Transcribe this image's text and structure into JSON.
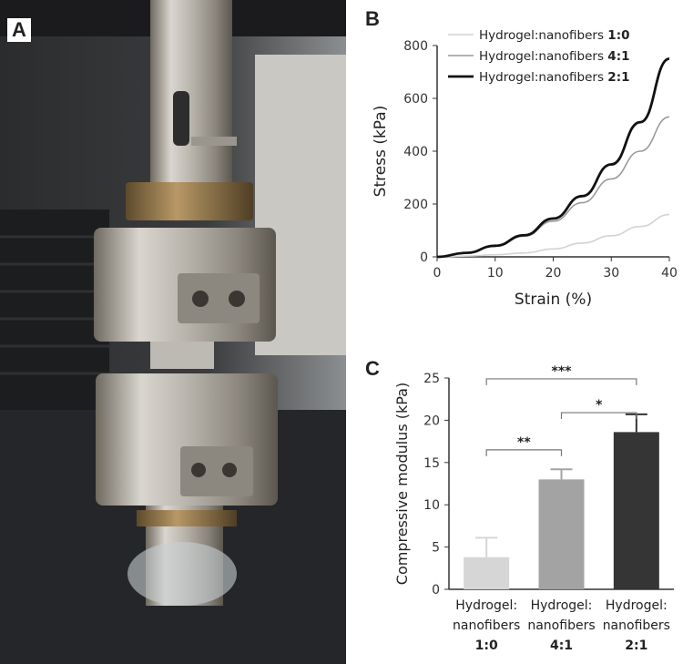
{
  "panels": {
    "a": "A",
    "b": "B",
    "c": "C"
  },
  "chart_data": [
    {
      "type": "line",
      "xlabel": "Strain (%)",
      "ylabel": "Stress (kPa)",
      "xlim": [
        0,
        40
      ],
      "ylim": [
        0,
        800
      ],
      "xticks": [
        0,
        10,
        20,
        30,
        40
      ],
      "yticks": [
        0,
        200,
        400,
        600,
        800
      ],
      "legend_position": "top-right",
      "series": [
        {
          "name": "Hydrogel:nanofibers 1:0",
          "color": "#d3d3d3",
          "x": [
            0,
            5,
            10,
            15,
            20,
            25,
            30,
            35,
            40
          ],
          "y": [
            0,
            3,
            8,
            15,
            30,
            52,
            80,
            115,
            160
          ]
        },
        {
          "name": "Hydrogel:nanofibers 4:1",
          "color": "#9a9a9a",
          "x": [
            0,
            5,
            10,
            15,
            20,
            25,
            30,
            35,
            40
          ],
          "y": [
            0,
            15,
            40,
            78,
            135,
            205,
            295,
            400,
            530
          ]
        },
        {
          "name": "Hydrogel:nanofibers 2:1",
          "color": "#111111",
          "x": [
            0,
            5,
            10,
            15,
            20,
            25,
            30,
            35,
            40
          ],
          "y": [
            0,
            15,
            42,
            82,
            145,
            230,
            350,
            510,
            750
          ]
        }
      ]
    },
    {
      "type": "bar",
      "ylabel": "Compressive modulus (kPa)",
      "ylim": [
        0,
        25
      ],
      "yticks": [
        0,
        5,
        10,
        15,
        20,
        25
      ],
      "categories": [
        [
          "Hydrogel:",
          "nanofibers",
          "1:0"
        ],
        [
          "Hydrogel:",
          "nanofibers",
          "4:1"
        ],
        [
          "Hydrogel:",
          "nanofibers",
          "2:1"
        ]
      ],
      "values": [
        3.8,
        13.0,
        18.6
      ],
      "errors": [
        2.3,
        1.2,
        2.1
      ],
      "colors": [
        "#d6d6d6",
        "#a3a3a3",
        "#353535"
      ],
      "significance": [
        {
          "from": 0,
          "to": 1,
          "label": "**"
        },
        {
          "from": 1,
          "to": 2,
          "label": "*"
        },
        {
          "from": 0,
          "to": 2,
          "label": "***"
        }
      ]
    }
  ]
}
